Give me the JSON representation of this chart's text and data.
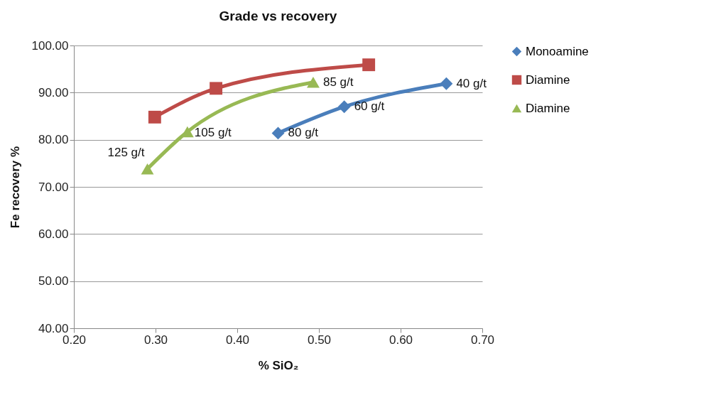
{
  "chart_data": {
    "type": "line",
    "title": "Grade vs recovery",
    "xlabel": "% SiO₂",
    "ylabel": "Fe recovery %",
    "xlim": [
      0.2,
      0.7
    ],
    "xticks": [
      {
        "value": 0.2,
        "label": "0.20"
      },
      {
        "value": 0.3,
        "label": "0.30"
      },
      {
        "value": 0.4,
        "label": "0.40"
      },
      {
        "value": 0.5,
        "label": "0.50"
      },
      {
        "value": 0.6,
        "label": "0.60"
      },
      {
        "value": 0.7,
        "label": "0.70"
      }
    ],
    "ylim": [
      40,
      100
    ],
    "yticks": [
      {
        "value": 40,
        "label": "40.00"
      },
      {
        "value": 50,
        "label": "50.00"
      },
      {
        "value": 60,
        "label": "60.00"
      },
      {
        "value": 70,
        "label": "70.00"
      },
      {
        "value": 80,
        "label": "80.00"
      },
      {
        "value": 90,
        "label": "90.00"
      },
      {
        "value": 100,
        "label": "100.00"
      }
    ],
    "grid": "y",
    "legend": "right",
    "line_style": "solid",
    "series": [
      {
        "name": "Monoamine",
        "color": "#4a7ebb",
        "marker": "diamond",
        "x": [
          0.45,
          0.531,
          0.656
        ],
        "values": [
          81.4,
          87.0,
          91.9
        ]
      },
      {
        "name": "Diamine",
        "color": "#be4b48",
        "marker": "square",
        "x": [
          0.299,
          0.374,
          0.561
        ],
        "values": [
          84.8,
          90.9,
          95.9
        ]
      },
      {
        "name": "Diamine",
        "color": "#98b954",
        "marker": "triangle",
        "x": [
          0.29,
          0.339,
          0.493
        ],
        "values": [
          73.8,
          81.7,
          92.2
        ]
      }
    ],
    "annotations": [
      {
        "text": "40 g/t",
        "x": 0.656,
        "y": 91.9
      },
      {
        "text": "60 g/t",
        "x": 0.531,
        "y": 87.0
      },
      {
        "text": "80 g/t",
        "x": 0.45,
        "y": 81.4
      },
      {
        "text": "85 g/t",
        "x": 0.493,
        "y": 92.2
      },
      {
        "text": "105 g/t",
        "x": 0.339,
        "y": 81.7
      },
      {
        "text": "125 g/t",
        "x": 0.29,
        "y": 73.8
      }
    ]
  }
}
